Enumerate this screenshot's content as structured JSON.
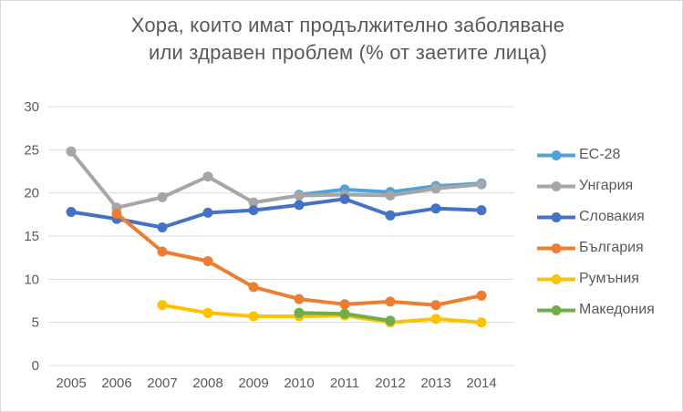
{
  "title": {
    "line1": "Хора, които имат продължително заболяване",
    "line2": "или здравен проблем (% от заетите лица)"
  },
  "chart_data": {
    "type": "line",
    "title": "Хора, които имат продължително заболяване или здравен проблем (% от заетите лица)",
    "categories": [
      "2005",
      "2006",
      "2007",
      "2008",
      "2009",
      "2010",
      "2011",
      "2012",
      "2013",
      "2014"
    ],
    "series": [
      {
        "key": "eu28",
        "name": "ЕС-28",
        "color": "#4FA3DA",
        "values": [
          null,
          null,
          null,
          null,
          null,
          19.8,
          20.4,
          20.1,
          20.8,
          21.1
        ]
      },
      {
        "key": "hungary",
        "name": "Унгария",
        "color": "#A6A6A6",
        "values": [
          24.8,
          18.3,
          19.5,
          21.9,
          18.9,
          19.7,
          19.8,
          19.7,
          20.5,
          21.0
        ]
      },
      {
        "key": "slovakia",
        "name": "Словакия",
        "color": "#4472C4",
        "values": [
          17.8,
          17.0,
          16.0,
          17.7,
          18.0,
          18.6,
          19.3,
          17.4,
          18.2,
          18.0
        ]
      },
      {
        "key": "bulgaria",
        "name": "България",
        "color": "#ED7D31",
        "values": [
          null,
          17.6,
          13.2,
          12.1,
          9.1,
          7.7,
          7.1,
          7.4,
          7.0,
          8.1
        ]
      },
      {
        "key": "romania",
        "name": "Румъния",
        "color": "#FFC000",
        "values": [
          null,
          null,
          7.0,
          6.1,
          5.7,
          5.7,
          5.8,
          5.0,
          5.4,
          5.0
        ]
      },
      {
        "key": "macedonia",
        "name": "Македония",
        "color": "#70AD47",
        "values": [
          null,
          null,
          null,
          null,
          null,
          6.1,
          6.0,
          5.2,
          null,
          null
        ]
      }
    ],
    "ylim": [
      0,
      30
    ],
    "ytick_step": 5,
    "yticks": [
      "0",
      "5",
      "10",
      "15",
      "20",
      "25",
      "30"
    ],
    "grid": true,
    "gridline_color": "#D9D9D9",
    "axis_text_color": "#595959",
    "legend_position": "right"
  }
}
